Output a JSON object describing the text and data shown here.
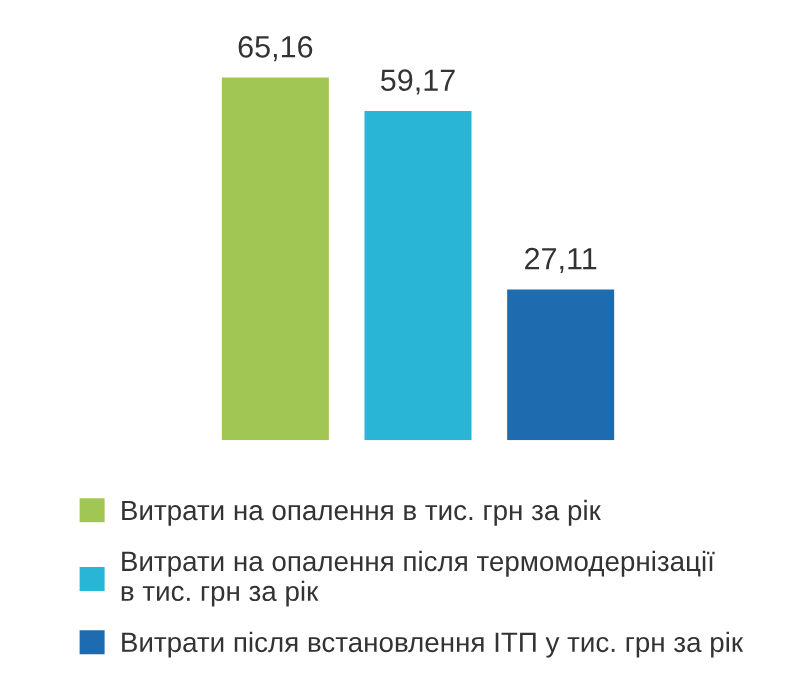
{
  "chart_data": {
    "type": "bar",
    "categories": [
      null
    ],
    "series": [
      {
        "name": "Витрати на опалення в тис. грн за рік",
        "color": "#a2c653",
        "values": [
          65.16
        ],
        "value_labels": [
          "65,16"
        ]
      },
      {
        "name": "Витрати на опалення після термомодернізації\nв тис. грн за рік",
        "color": "#29b5d6",
        "values": [
          59.17
        ],
        "value_labels": [
          "59,17"
        ]
      },
      {
        "name": "Витрати після встановлення ІТП у тис. грн за рік",
        "color": "#1f6bb0",
        "values": [
          27.11
        ],
        "value_labels": [
          "27,11"
        ]
      }
    ],
    "legend": "bottom",
    "grid": false,
    "tick_labels": false
  }
}
